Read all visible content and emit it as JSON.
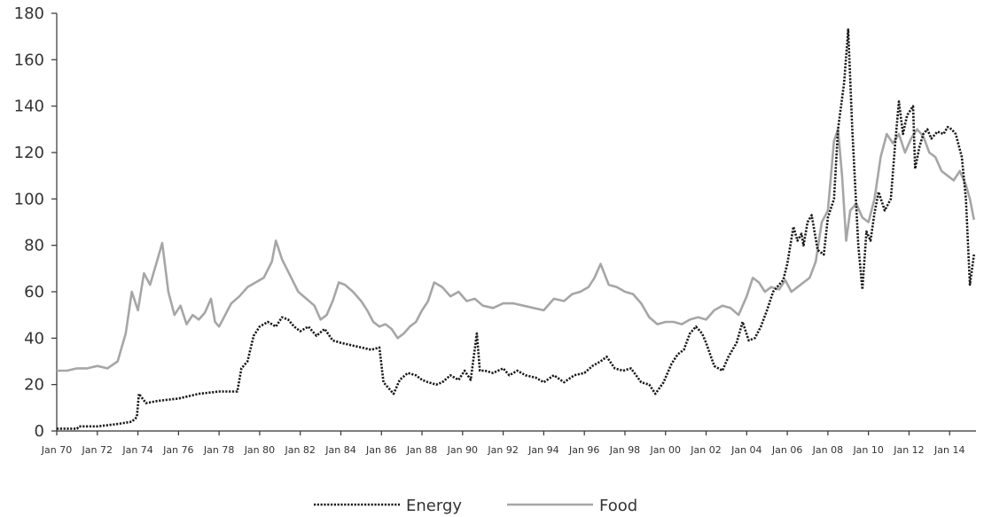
{
  "chart_data": {
    "type": "line",
    "ylim": [
      0,
      180
    ],
    "y_ticks": [
      "0",
      "20",
      "40",
      "60",
      "80",
      "100",
      "120",
      "140",
      "160",
      "180"
    ],
    "x_range": [
      1970,
      2015.3
    ],
    "x_ticks": [
      {
        "label": "Jan 70",
        "x": 1970
      },
      {
        "label": "Jan 72",
        "x": 1972
      },
      {
        "label": "Jan 74",
        "x": 1974
      },
      {
        "label": "Jan 76",
        "x": 1976
      },
      {
        "label": "Jan 78",
        "x": 1978
      },
      {
        "label": "Jan 80",
        "x": 1980
      },
      {
        "label": "Jan 82",
        "x": 1982
      },
      {
        "label": "Jan 84",
        "x": 1984
      },
      {
        "label": "Jan 86",
        "x": 1986
      },
      {
        "label": "Jan 88",
        "x": 1988
      },
      {
        "label": "Jan 90",
        "x": 1990
      },
      {
        "label": "Jan 92",
        "x": 1992
      },
      {
        "label": "Jan 94",
        "x": 1994
      },
      {
        "label": "Jan 96",
        "x": 1996
      },
      {
        "label": "Jan 98",
        "x": 1998
      },
      {
        "label": "Jan 00",
        "x": 2000
      },
      {
        "label": "Jan 02",
        "x": 2002
      },
      {
        "label": "Jan 04",
        "x": 2004
      },
      {
        "label": "Jan 06",
        "x": 2006
      },
      {
        "label": "Jan 08",
        "x": 2008
      },
      {
        "label": "Jan 10",
        "x": 2010
      },
      {
        "label": "Jan 12",
        "x": 2012
      },
      {
        "label": "Jan 14",
        "x": 2014
      }
    ],
    "grid": false,
    "legend": "bottom-center",
    "series": [
      {
        "name": "Energy",
        "color": "#1a1a1a",
        "style": "dotted",
        "x": [
          1970,
          1971,
          1971.1,
          1972,
          1972.5,
          1973,
          1973.7,
          1973.95,
          1974.05,
          1974.4,
          1975,
          1976,
          1977,
          1978,
          1978.9,
          1979.1,
          1979.4,
          1979.7,
          1980,
          1980.4,
          1980.8,
          1981.1,
          1981.4,
          1981.7,
          1982,
          1982.4,
          1982.8,
          1983.2,
          1983.6,
          1984,
          1984.5,
          1985,
          1985.5,
          1985.9,
          1986.1,
          1986.3,
          1986.6,
          1986.9,
          1987.3,
          1987.7,
          1988,
          1988.3,
          1988.7,
          1989,
          1989.4,
          1989.8,
          1990.1,
          1990.4,
          1990.7,
          1990.85,
          1991.1,
          1991.5,
          1992,
          1992.3,
          1992.7,
          1993.1,
          1993.6,
          1994,
          1994.5,
          1995,
          1995.5,
          1996,
          1996.4,
          1996.8,
          1997.1,
          1997.5,
          1997.9,
          1998.3,
          1998.8,
          1999.2,
          1999.5,
          1999.9,
          2000.3,
          2000.6,
          2000.9,
          2001.2,
          2001.5,
          2001.8,
          2002,
          2002.4,
          2002.8,
          2003.1,
          2003.3,
          2003.5,
          2003.8,
          2004.1,
          2004.4,
          2004.7,
          2005,
          2005.3,
          2005.6,
          2005.8,
          2006,
          2006.3,
          2006.5,
          2006.7,
          2006.8,
          2007,
          2007.2,
          2007.5,
          2007.8,
          2008,
          2008.3,
          2008.5,
          2008.8,
          2009,
          2009.2,
          2009.5,
          2009.7,
          2009.9,
          2010.1,
          2010.3,
          2010.5,
          2010.8,
          2011.1,
          2011.3,
          2011.5,
          2011.7,
          2011.9,
          2012.2,
          2012.3,
          2012.5,
          2012.7,
          2012.9,
          2013.1,
          2013.4,
          2013.7,
          2013.9,
          2014.1,
          2014.3,
          2014.6,
          2014.8,
          2015,
          2015.2
        ],
        "y": [
          1,
          1,
          2,
          2,
          2.5,
          3,
          4,
          6,
          16,
          12,
          13,
          14,
          16,
          17,
          17,
          27,
          30,
          41,
          45,
          47,
          45,
          49,
          48,
          45,
          43,
          45,
          41,
          44,
          39,
          38,
          37,
          36,
          35,
          36,
          21,
          19,
          16,
          22,
          25,
          24,
          22,
          21,
          20,
          21,
          24,
          22,
          26,
          22,
          42,
          26,
          26,
          25,
          27,
          24,
          26,
          24,
          23,
          21,
          24,
          21,
          24,
          25,
          28,
          30,
          32,
          27,
          26,
          27,
          21,
          20,
          16,
          21,
          29,
          33,
          35,
          42,
          45,
          42,
          38,
          28,
          26,
          32,
          35,
          38,
          47,
          39,
          40,
          45,
          52,
          60,
          63,
          65,
          72,
          88,
          82,
          85,
          80,
          90,
          93,
          78,
          76,
          92,
          100,
          130,
          150,
          173,
          130,
          80,
          61,
          86,
          82,
          94,
          103,
          95,
          100,
          122,
          142,
          128,
          136,
          140,
          113,
          122,
          128,
          130,
          126,
          129,
          128,
          131,
          130,
          128,
          118,
          100,
          63,
          76
        ]
      },
      {
        "name": "Food",
        "color": "#a6a6a6",
        "style": "solid",
        "x": [
          1970,
          1970.5,
          1971,
          1971.5,
          1972,
          1972.5,
          1973,
          1973.4,
          1973.7,
          1974,
          1974.3,
          1974.6,
          1974.9,
          1975.2,
          1975.5,
          1975.8,
          1976.1,
          1976.4,
          1976.7,
          1977,
          1977.3,
          1977.6,
          1977.8,
          1978,
          1978.3,
          1978.6,
          1979,
          1979.4,
          1979.8,
          1980.2,
          1980.6,
          1980.8,
          1981.1,
          1981.5,
          1981.9,
          1982.3,
          1982.7,
          1983,
          1983.3,
          1983.6,
          1983.9,
          1984.2,
          1984.6,
          1985,
          1985.3,
          1985.6,
          1985.9,
          1986.2,
          1986.5,
          1986.8,
          1987.1,
          1987.4,
          1987.7,
          1988,
          1988.3,
          1988.6,
          1989,
          1989.4,
          1989.8,
          1990.2,
          1990.6,
          1991,
          1991.5,
          1992,
          1992.5,
          1993,
          1993.5,
          1994,
          1994.5,
          1995,
          1995.4,
          1995.8,
          1996.2,
          1996.5,
          1996.8,
          1997.2,
          1997.6,
          1998,
          1998.4,
          1998.8,
          1999.2,
          1999.6,
          2000,
          2000.4,
          2000.8,
          2001.2,
          2001.6,
          2002,
          2002.4,
          2002.8,
          2003.2,
          2003.6,
          2004,
          2004.3,
          2004.6,
          2004.9,
          2005.2,
          2005.6,
          2005.9,
          2006.2,
          2006.5,
          2006.8,
          2007.1,
          2007.4,
          2007.7,
          2008,
          2008.3,
          2008.5,
          2008.7,
          2008.9,
          2009.1,
          2009.4,
          2009.7,
          2010,
          2010.3,
          2010.6,
          2010.9,
          2011.2,
          2011.5,
          2011.8,
          2012.1,
          2012.4,
          2012.7,
          2013,
          2013.3,
          2013.6,
          2013.9,
          2014.2,
          2014.5,
          2014.8,
          2015,
          2015.2
        ],
        "y": [
          26,
          26,
          27,
          27,
          28,
          27,
          30,
          42,
          60,
          52,
          68,
          63,
          72,
          81,
          60,
          50,
          54,
          46,
          50,
          48,
          51,
          57,
          47,
          45,
          50,
          55,
          58,
          62,
          64,
          66,
          73,
          82,
          74,
          67,
          60,
          57,
          54,
          48,
          50,
          56,
          64,
          63,
          60,
          56,
          52,
          47,
          45,
          46,
          44,
          40,
          42,
          45,
          47,
          52,
          56,
          64,
          62,
          58,
          60,
          56,
          57,
          54,
          53,
          55,
          55,
          54,
          53,
          52,
          57,
          56,
          59,
          60,
          62,
          66,
          72,
          63,
          62,
          60,
          59,
          55,
          49,
          46,
          47,
          47,
          46,
          48,
          49,
          48,
          52,
          54,
          53,
          50,
          58,
          66,
          64,
          60,
          62,
          61,
          65,
          60,
          62,
          64,
          66,
          73,
          90,
          95,
          125,
          130,
          110,
          82,
          95,
          98,
          92,
          90,
          100,
          118,
          128,
          124,
          128,
          120,
          126,
          130,
          127,
          120,
          118,
          112,
          110,
          108,
          112,
          106,
          100,
          91
        ]
      }
    ]
  }
}
